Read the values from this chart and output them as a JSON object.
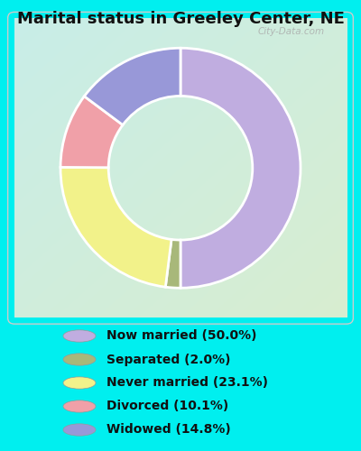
{
  "title": "Marital status in Greeley Center, NE",
  "slices": [
    {
      "label": "Now married (50.0%)",
      "value": 50.0,
      "color": "#C0ADE0"
    },
    {
      "label": "Separated (2.0%)",
      "value": 2.0,
      "color": "#A8B87A"
    },
    {
      "label": "Never married (23.1%)",
      "value": 23.1,
      "color": "#F2F28A"
    },
    {
      "label": "Divorced (10.1%)",
      "value": 10.1,
      "color": "#F0A0A8"
    },
    {
      "label": "Widowed (14.8%)",
      "value": 14.8,
      "color": "#9898D8"
    }
  ],
  "title_fontsize": 13,
  "title_color": "#1a1a1a",
  "legend_bg_color": "#00EFEF",
  "chart_bg_color_tl": "#C8EEE8",
  "chart_bg_color_br": "#D8EDD0",
  "watermark": "City-Data.com",
  "startangle": 90,
  "donut_width": 0.4
}
